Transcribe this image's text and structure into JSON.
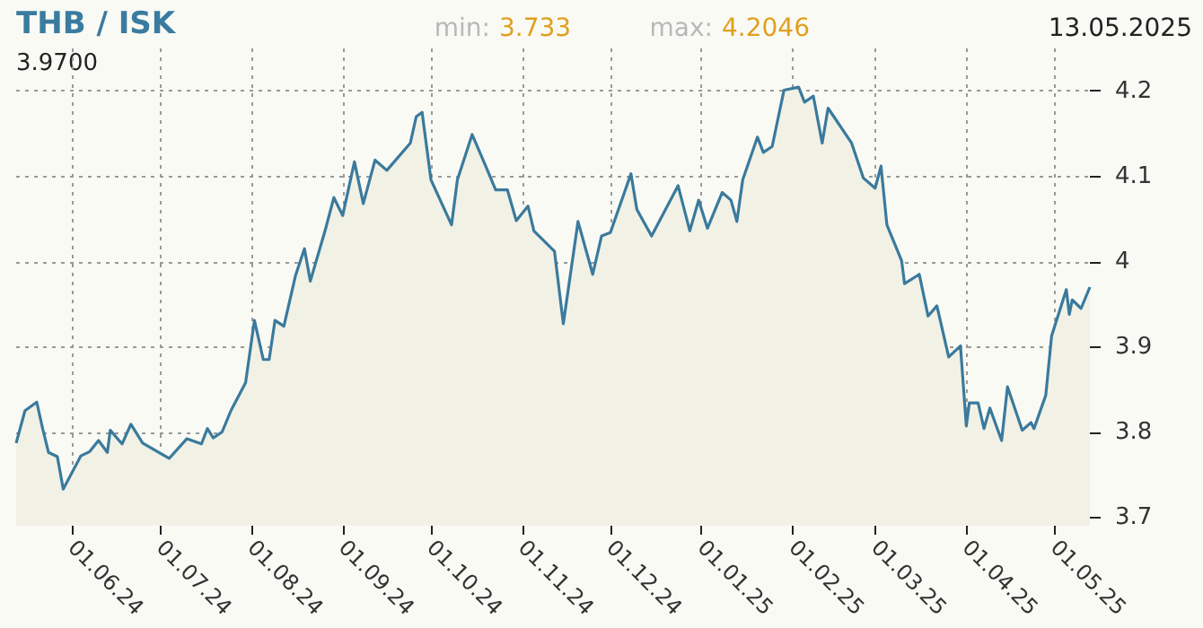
{
  "chart_data": {
    "type": "area",
    "title": "THB / ISK",
    "annotations": [
      "min:",
      "3.733",
      "max:",
      "4.2046",
      "13.05.2025",
      "3.9700"
    ],
    "x": [
      "2024-05-13",
      "2024-05-16",
      "2024-05-20",
      "2024-05-22",
      "2024-05-24",
      "2024-05-27",
      "2024-05-29",
      "2024-06-04",
      "2024-06-07",
      "2024-06-10",
      "2024-06-13",
      "2024-06-14",
      "2024-06-18",
      "2024-06-21",
      "2024-06-25",
      "2024-07-04",
      "2024-07-10",
      "2024-07-15",
      "2024-07-17",
      "2024-07-19",
      "2024-07-22",
      "2024-07-25",
      "2024-07-30",
      "2024-08-02",
      "2024-08-05",
      "2024-08-07",
      "2024-08-09",
      "2024-08-12",
      "2024-08-16",
      "2024-08-19",
      "2024-08-21",
      "2024-08-26",
      "2024-08-29",
      "2024-09-01",
      "2024-09-05",
      "2024-09-08",
      "2024-09-12",
      "2024-09-16",
      "2024-09-24",
      "2024-09-26",
      "2024-09-28",
      "2024-10-01",
      "2024-10-08",
      "2024-10-10",
      "2024-10-15",
      "2024-10-19",
      "2024-10-23",
      "2024-10-27",
      "2024-10-30",
      "2024-11-03",
      "2024-11-05",
      "2024-11-12",
      "2024-11-15",
      "2024-11-20",
      "2024-11-25",
      "2024-11-28",
      "2024-12-01",
      "2024-12-08",
      "2024-12-10",
      "2024-12-15",
      "2024-12-24",
      "2024-12-28",
      "2024-12-31",
      "2025-01-03",
      "2025-01-08",
      "2025-01-11",
      "2025-01-13",
      "2025-01-15",
      "2025-01-20",
      "2025-01-22",
      "2025-01-25",
      "2025-01-29",
      "2025-02-03",
      "2025-02-05",
      "2025-02-08",
      "2025-02-11",
      "2025-02-13",
      "2025-02-21",
      "2025-02-25",
      "2025-03-01",
      "2025-03-03",
      "2025-03-05",
      "2025-03-10",
      "2025-03-11",
      "2025-03-16",
      "2025-03-19",
      "2025-03-22",
      "2025-03-26",
      "2025-03-30",
      "2025-04-01",
      "2025-04-02",
      "2025-04-05",
      "2025-04-07",
      "2025-04-09",
      "2025-04-13",
      "2025-04-15",
      "2025-04-20",
      "2025-04-23",
      "2025-04-24",
      "2025-04-28",
      "2025-04-30",
      "2025-05-05",
      "2025-05-06",
      "2025-05-07",
      "2025-05-10",
      "2025-05-13"
    ],
    "series": [
      {
        "color": "#3a7a9c",
        "values": [
          3.787,
          3.825,
          3.835,
          3.804,
          3.776,
          3.771,
          3.733,
          3.772,
          3.777,
          3.79,
          3.776,
          3.802,
          3.786,
          3.809,
          3.787,
          3.769,
          3.792,
          3.786,
          3.804,
          3.793,
          3.8,
          3.825,
          3.858,
          3.931,
          3.885,
          3.885,
          3.931,
          3.924,
          3.984,
          4.015,
          3.977,
          4.036,
          4.075,
          4.054,
          4.117,
          4.068,
          4.119,
          4.107,
          4.139,
          4.17,
          4.175,
          4.096,
          4.043,
          4.096,
          4.149,
          4.117,
          4.084,
          4.084,
          4.048,
          4.065,
          4.036,
          4.012,
          3.927,
          4.047,
          3.985,
          4.03,
          4.034,
          4.103,
          4.061,
          4.03,
          4.089,
          4.036,
          4.072,
          4.039,
          4.081,
          4.072,
          4.047,
          4.096,
          4.146,
          4.128,
          4.135,
          4.201,
          4.2046,
          4.187,
          4.194,
          4.139,
          4.18,
          4.139,
          4.098,
          4.086,
          4.112,
          4.043,
          4.001,
          3.974,
          3.985,
          3.936,
          3.948,
          3.888,
          3.901,
          3.807,
          3.834,
          3.834,
          3.804,
          3.828,
          3.79,
          3.853,
          3.802,
          3.811,
          3.804,
          3.843,
          3.913,
          3.967,
          3.938,
          3.955,
          3.945,
          3.97
        ]
      }
    ],
    "xlim": [
      "2024-05-13",
      "2025-05-13"
    ],
    "xticks": [
      {
        "value": "2024-06-01",
        "label": "01.06.24"
      },
      {
        "value": "2024-07-01",
        "label": "01.07.24"
      },
      {
        "value": "2024-08-01",
        "label": "01.08.24"
      },
      {
        "value": "2024-09-01",
        "label": "01.09.24"
      },
      {
        "value": "2024-10-01",
        "label": "01.10.24"
      },
      {
        "value": "2024-11-01",
        "label": "01.11.24"
      },
      {
        "value": "2024-12-01",
        "label": "01.12.24"
      },
      {
        "value": "2025-01-01",
        "label": "01.01.25"
      },
      {
        "value": "2025-02-01",
        "label": "01.02.25"
      },
      {
        "value": "2025-03-01",
        "label": "01.03.25"
      },
      {
        "value": "2025-04-01",
        "label": "01.04.25"
      },
      {
        "value": "2025-05-01",
        "label": "01.05.25"
      }
    ],
    "ylim": [
      3.69,
      4.25
    ],
    "yticks": [
      3.7,
      3.8,
      3.9,
      4,
      4.1,
      4.2
    ],
    "grid": true,
    "marker": "none",
    "line_style": "solid"
  }
}
